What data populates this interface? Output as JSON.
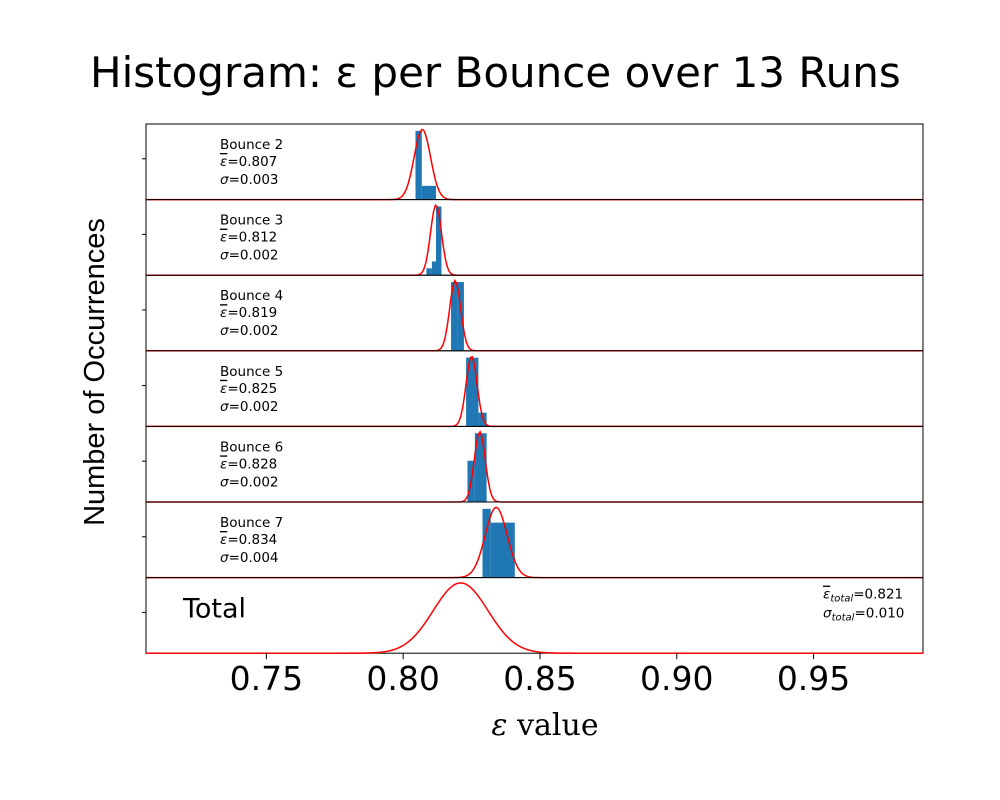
{
  "chart_data": {
    "type": "bar",
    "title": "Histogram: ε per Bounce over 13 Runs",
    "xlabel_symbol": "ε",
    "xlabel_text": "value",
    "ylabel": "Number of Occurrences",
    "xlim": [
      0.706,
      0.99
    ],
    "xticks": [
      "0.75",
      "0.80",
      "0.85",
      "0.90",
      "0.95"
    ],
    "bar_color": "#1f77b4",
    "curve_color": "#ff0000",
    "panels": [
      {
        "label": "Bounce 2",
        "mean_text": "=0.807",
        "sigma_text": "=0.003",
        "mean": 0.807,
        "sigma": 0.003,
        "ylim": [
          0,
          11
        ],
        "bins": [
          {
            "x0": 0.8045,
            "x1": 0.8068,
            "count": 10
          },
          {
            "x0": 0.8068,
            "x1": 0.812,
            "count": 2
          }
        ]
      },
      {
        "label": "Bounce 3",
        "mean_text": "=0.812",
        "sigma_text": "=0.002",
        "mean": 0.812,
        "sigma": 0.002,
        "ylim": [
          0,
          11
        ],
        "bins": [
          {
            "x0": 0.8085,
            "x1": 0.8105,
            "count": 1
          },
          {
            "x0": 0.8105,
            "x1": 0.812,
            "count": 2
          },
          {
            "x0": 0.812,
            "x1": 0.814,
            "count": 10
          }
        ]
      },
      {
        "label": "Bounce 4",
        "mean_text": "=0.819",
        "sigma_text": "=0.002",
        "mean": 0.819,
        "sigma": 0.002,
        "ylim": [
          0,
          11
        ],
        "bins": [
          {
            "x0": 0.8175,
            "x1": 0.82,
            "count": 10
          },
          {
            "x0": 0.82,
            "x1": 0.8222,
            "count": 10
          }
        ]
      },
      {
        "label": "Bounce 5",
        "mean_text": "=0.825",
        "sigma_text": "=0.002",
        "mean": 0.825,
        "sigma": 0.002,
        "ylim": [
          0,
          11
        ],
        "bins": [
          {
            "x0": 0.823,
            "x1": 0.8275,
            "count": 10
          },
          {
            "x0": 0.8275,
            "x1": 0.8305,
            "count": 2
          }
        ]
      },
      {
        "label": "Bounce 6",
        "mean_text": "=0.828",
        "sigma_text": "=0.002",
        "mean": 0.828,
        "sigma": 0.002,
        "ylim": [
          0,
          11
        ],
        "bins": [
          {
            "x0": 0.8235,
            "x1": 0.8262,
            "count": 6
          },
          {
            "x0": 0.8262,
            "x1": 0.8305,
            "count": 10
          }
        ]
      },
      {
        "label": "Bounce 7",
        "mean_text": "=0.834",
        "sigma_text": "=0.004",
        "mean": 0.834,
        "sigma": 0.004,
        "ylim": [
          0,
          11
        ],
        "bins": [
          {
            "x0": 0.829,
            "x1": 0.832,
            "count": 10
          },
          {
            "x0": 0.832,
            "x1": 0.8408,
            "count": 8
          }
        ]
      }
    ],
    "total": {
      "label": "Total",
      "mean_text": "=0.821",
      "sigma_text": "=0.010",
      "mean": 0.821,
      "sigma": 0.01
    }
  }
}
